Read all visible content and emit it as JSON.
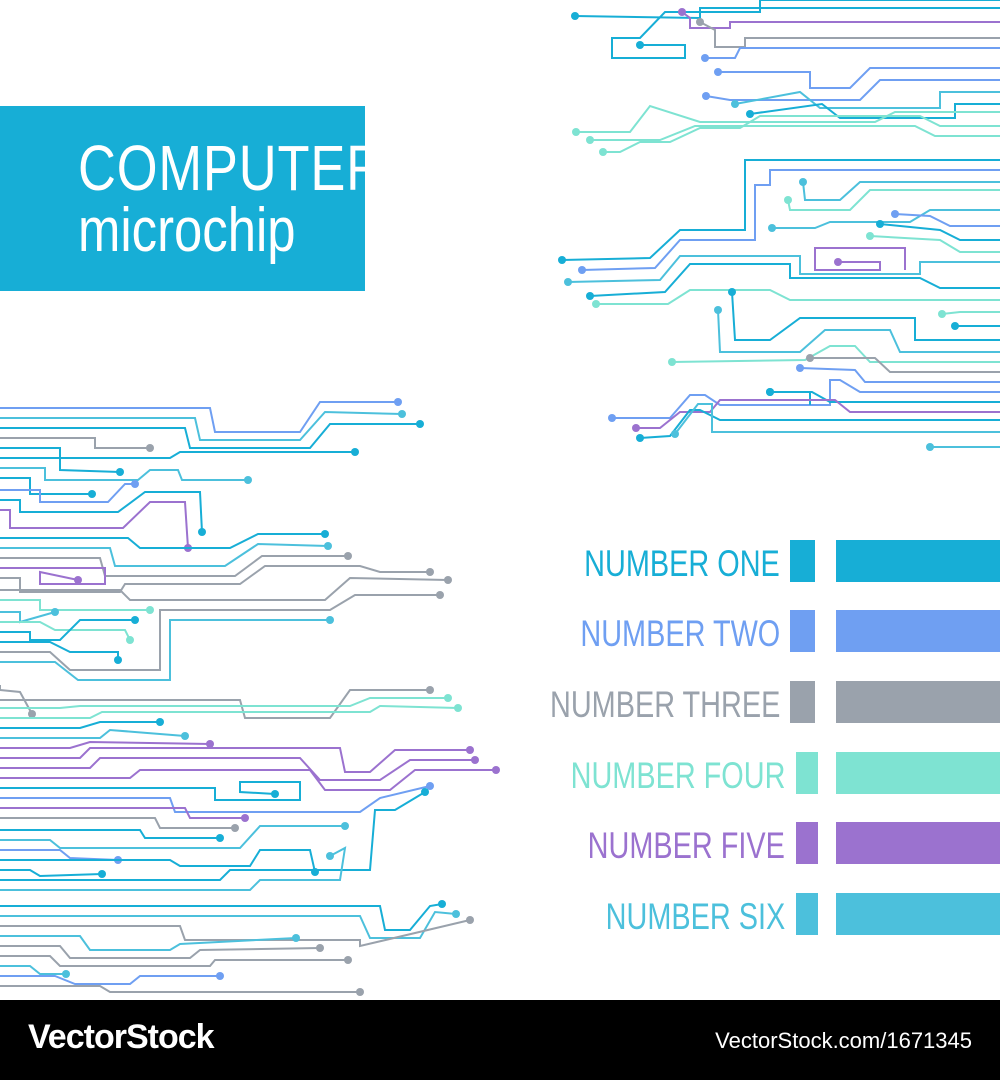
{
  "title": {
    "line1": "COMPUTER",
    "line2": "microchip"
  },
  "legend": [
    {
      "label": "NUMBER ONE",
      "color": "#17aed6"
    },
    {
      "label": "NUMBER TWO",
      "color": "#6f9ff2"
    },
    {
      "label": "NUMBER THREE",
      "color": "#9aa2ac"
    },
    {
      "label": "NUMBER FOUR",
      "color": "#7ee3d2"
    },
    {
      "label": "NUMBER FIVE",
      "color": "#9b72cf"
    },
    {
      "label": "NUMBER SIX",
      "color": "#4cc0dc"
    }
  ],
  "footer": {
    "brand": "VectorStock",
    "url": "VectorStock.com/1671345"
  }
}
